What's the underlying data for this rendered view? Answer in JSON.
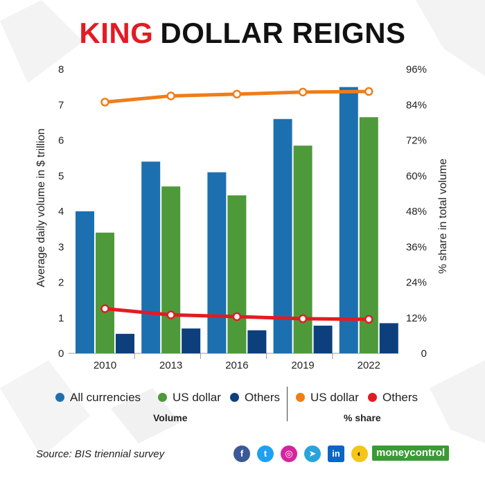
{
  "title": {
    "part1": "KING",
    "part2": "DOLLAR REIGNS"
  },
  "chart_data": {
    "type": "bar",
    "categories": [
      "2010",
      "2013",
      "2016",
      "2019",
      "2022"
    ],
    "series": [
      {
        "name": "All currencies",
        "type": "bar",
        "axis": "left",
        "color": "#1d70b0",
        "values": [
          4.0,
          5.4,
          5.1,
          6.6,
          7.5
        ]
      },
      {
        "name": "US dollar",
        "type": "bar",
        "axis": "left",
        "color": "#4e9a3a",
        "values": [
          3.4,
          4.7,
          4.45,
          5.85,
          6.65
        ]
      },
      {
        "name": "Others",
        "type": "bar",
        "axis": "left",
        "color": "#0d3f7c",
        "values": [
          0.55,
          0.7,
          0.65,
          0.78,
          0.85
        ]
      },
      {
        "name": "US dollar",
        "type": "line",
        "axis": "right",
        "color": "#f07d17",
        "values": [
          84.9,
          87.0,
          87.6,
          88.3,
          88.5
        ]
      },
      {
        "name": "Others",
        "type": "line",
        "axis": "right",
        "color": "#e31b23",
        "values": [
          15.1,
          13.0,
          12.4,
          11.7,
          11.5
        ]
      }
    ],
    "y_left": {
      "label": "Average daily volume in $ trillion",
      "min": 0,
      "max": 8,
      "ticks": [
        "0",
        "1",
        "2",
        "3",
        "4",
        "5",
        "6",
        "7",
        "8"
      ]
    },
    "y_right": {
      "label": "% share in total volume",
      "min": 0,
      "max": 96,
      "ticks": [
        "0",
        "12%",
        "24%",
        "36%",
        "48%",
        "60%",
        "72%",
        "84%",
        "96%"
      ]
    },
    "grid": false,
    "legend_position": "bottom"
  },
  "legend": {
    "items": [
      {
        "label": "All currencies",
        "color": "#1d70b0"
      },
      {
        "label": "US dollar",
        "color": "#4e9a3a"
      },
      {
        "label": "Others",
        "color": "#0d3f7c"
      },
      {
        "label": "US dollar",
        "color": "#f07d17"
      },
      {
        "label": "Others",
        "color": "#e31b23"
      }
    ],
    "group_volume": "Volume",
    "group_share": "% share"
  },
  "footer": {
    "source": "Source: BIS triennial survey",
    "social_icons": [
      {
        "name": "facebook-icon",
        "glyph": "f",
        "color": "#3b5998"
      },
      {
        "name": "twitter-icon",
        "glyph": "t",
        "color": "#1da1f2"
      },
      {
        "name": "instagram-icon",
        "glyph": "◎",
        "color": "#d6249f"
      },
      {
        "name": "telegram-icon",
        "glyph": "➤",
        "color": "#2aa3dd"
      },
      {
        "name": "linkedin-icon",
        "glyph": "in",
        "color": "#0a66c2"
      },
      {
        "name": "koo-icon",
        "glyph": "◐",
        "color": "#f5c518"
      }
    ],
    "brand": "moneycontrol"
  }
}
